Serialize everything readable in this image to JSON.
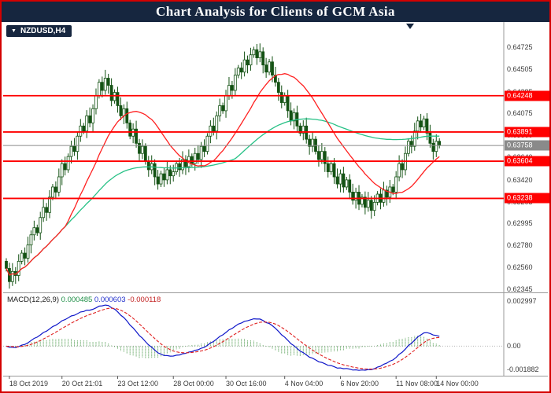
{
  "header": {
    "title": "Chart Analysis for Clients of GCM Asia",
    "bg": "#16263f"
  },
  "symbol_label": "NZDUSD,H4",
  "price_axis_ticks": [
    "0.64725",
    "0.64505",
    "0.64285",
    "0.64075",
    "0.63860",
    "0.63640",
    "0.63420",
    "0.63205",
    "0.62995",
    "0.62780",
    "0.62560",
    "0.62345"
  ],
  "levels": [
    {
      "price": 0.64248,
      "label": "0.64248"
    },
    {
      "price": 0.63891,
      "label": "0.63891"
    },
    {
      "price": 0.63604,
      "label": "0.63604"
    },
    {
      "price": 0.63238,
      "label": "0.63238"
    }
  ],
  "current_price": {
    "value": 0.63758,
    "label": "0.63758"
  },
  "time_axis": [
    {
      "label": "18 Oct 2019",
      "bar": 1
    },
    {
      "label": "20 Oct 21:01",
      "bar": 18
    },
    {
      "label": "23 Oct 12:00",
      "bar": 36
    },
    {
      "label": "28 Oct 00:00",
      "bar": 54
    },
    {
      "label": "30 Oct 16:00",
      "bar": 71
    },
    {
      "label": "4 Nov 04:00",
      "bar": 90
    },
    {
      "label": "6 Nov 20:00",
      "bar": 108
    },
    {
      "label": "11 Nov 08:00",
      "bar": 126
    },
    {
      "label": "14 Nov 00:00",
      "bar": 139
    }
  ],
  "macd_panel": {
    "name": "MACD(12,26,9)",
    "value_main": "0.000485",
    "value_signal": "0.000603",
    "value_hist": "-0.000118",
    "axis_top": "0.002997",
    "axis_zero": "0.00",
    "axis_bottom": "-0.001882"
  },
  "colors": {
    "frame_border": "#d40000",
    "header_bg": "#16263f",
    "candle_outline": "#145214",
    "candle_bull_fill": "#ffffff",
    "candle_bear_fill": "#145214",
    "ma_fast": "#ff2020",
    "ma_slow": "#27c186",
    "level_line": "#ff0000",
    "current_line": "#8a8a8a",
    "macd_line": "#0f17c9",
    "signal_line": "#e02020",
    "histogram": "#3a8f3a",
    "axis_separator": "#9a9a9a"
  },
  "chart_data": {
    "type": "candlestick",
    "symbol": "NZDUSD",
    "timeframe": "H4",
    "title": "Chart Analysis for Clients of GCM Asia",
    "x_labels": [
      "18 Oct 2019",
      "20 Oct 21:01",
      "23 Oct 12:00",
      "28 Oct 00:00",
      "30 Oct 16:00",
      "4 Nov 04:00",
      "6 Nov 20:00",
      "11 Nov 08:00",
      "14 Nov 00:00"
    ],
    "price_axis_range": [
      0.62314,
      0.64957
    ],
    "first_open": 0.6262,
    "closes": [
      0.6255,
      0.6242,
      0.6252,
      0.6248,
      0.6262,
      0.627,
      0.6265,
      0.6278,
      0.6288,
      0.6295,
      0.629,
      0.6305,
      0.6315,
      0.631,
      0.6325,
      0.6335,
      0.633,
      0.6345,
      0.6358,
      0.6352,
      0.6365,
      0.6375,
      0.637,
      0.6385,
      0.6395,
      0.639,
      0.6405,
      0.6398,
      0.6412,
      0.6425,
      0.6438,
      0.643,
      0.6442,
      0.6435,
      0.642,
      0.6428,
      0.6415,
      0.6405,
      0.6412,
      0.6398,
      0.6385,
      0.6392,
      0.6378,
      0.6368,
      0.6375,
      0.636,
      0.6352,
      0.6358,
      0.6345,
      0.6338,
      0.6348,
      0.6342,
      0.6352,
      0.6346,
      0.635,
      0.6358,
      0.6352,
      0.6362,
      0.6355,
      0.6365,
      0.6358,
      0.6368,
      0.6362,
      0.6375,
      0.637,
      0.6385,
      0.6395,
      0.639,
      0.6405,
      0.6415,
      0.641,
      0.6425,
      0.6435,
      0.643,
      0.6445,
      0.6452,
      0.6448,
      0.646,
      0.6455,
      0.6465,
      0.647,
      0.6462,
      0.6468,
      0.6455,
      0.6448,
      0.6458,
      0.6445,
      0.6438,
      0.6428,
      0.6418,
      0.6425,
      0.641,
      0.64,
      0.6408,
      0.6395,
      0.6388,
      0.6395,
      0.6382,
      0.6375,
      0.6382,
      0.637,
      0.6362,
      0.637,
      0.6358,
      0.635,
      0.6358,
      0.6345,
      0.6338,
      0.6348,
      0.6335,
      0.6342,
      0.633,
      0.6322,
      0.633,
      0.6318,
      0.6325,
      0.6315,
      0.6322,
      0.6312,
      0.632,
      0.6328,
      0.632,
      0.6332,
      0.6325,
      0.6335,
      0.633,
      0.6345,
      0.6358,
      0.6352,
      0.6368,
      0.638,
      0.6375,
      0.639,
      0.64,
      0.6394,
      0.6402,
      0.6388,
      0.6378,
      0.637,
      0.638,
      0.6376
    ],
    "wick_extremes": {
      "1": {
        "low": 0.6236
      },
      "80": {
        "high": 0.64725
      }
    },
    "horizontal_levels": [
      0.64248,
      0.63891,
      0.63604,
      0.63238
    ],
    "current_price": 0.63758,
    "indicators": {
      "ma_fast_period": 20,
      "ma_slow_period": 75,
      "macd": [
        12,
        26,
        9
      ]
    },
    "macd_last_values": {
      "macd": 0.000485,
      "signal": 0.000603,
      "histogram": -0.000118
    },
    "macd_axis_labels": [
      0.002997,
      0.0,
      -0.001882
    ]
  }
}
